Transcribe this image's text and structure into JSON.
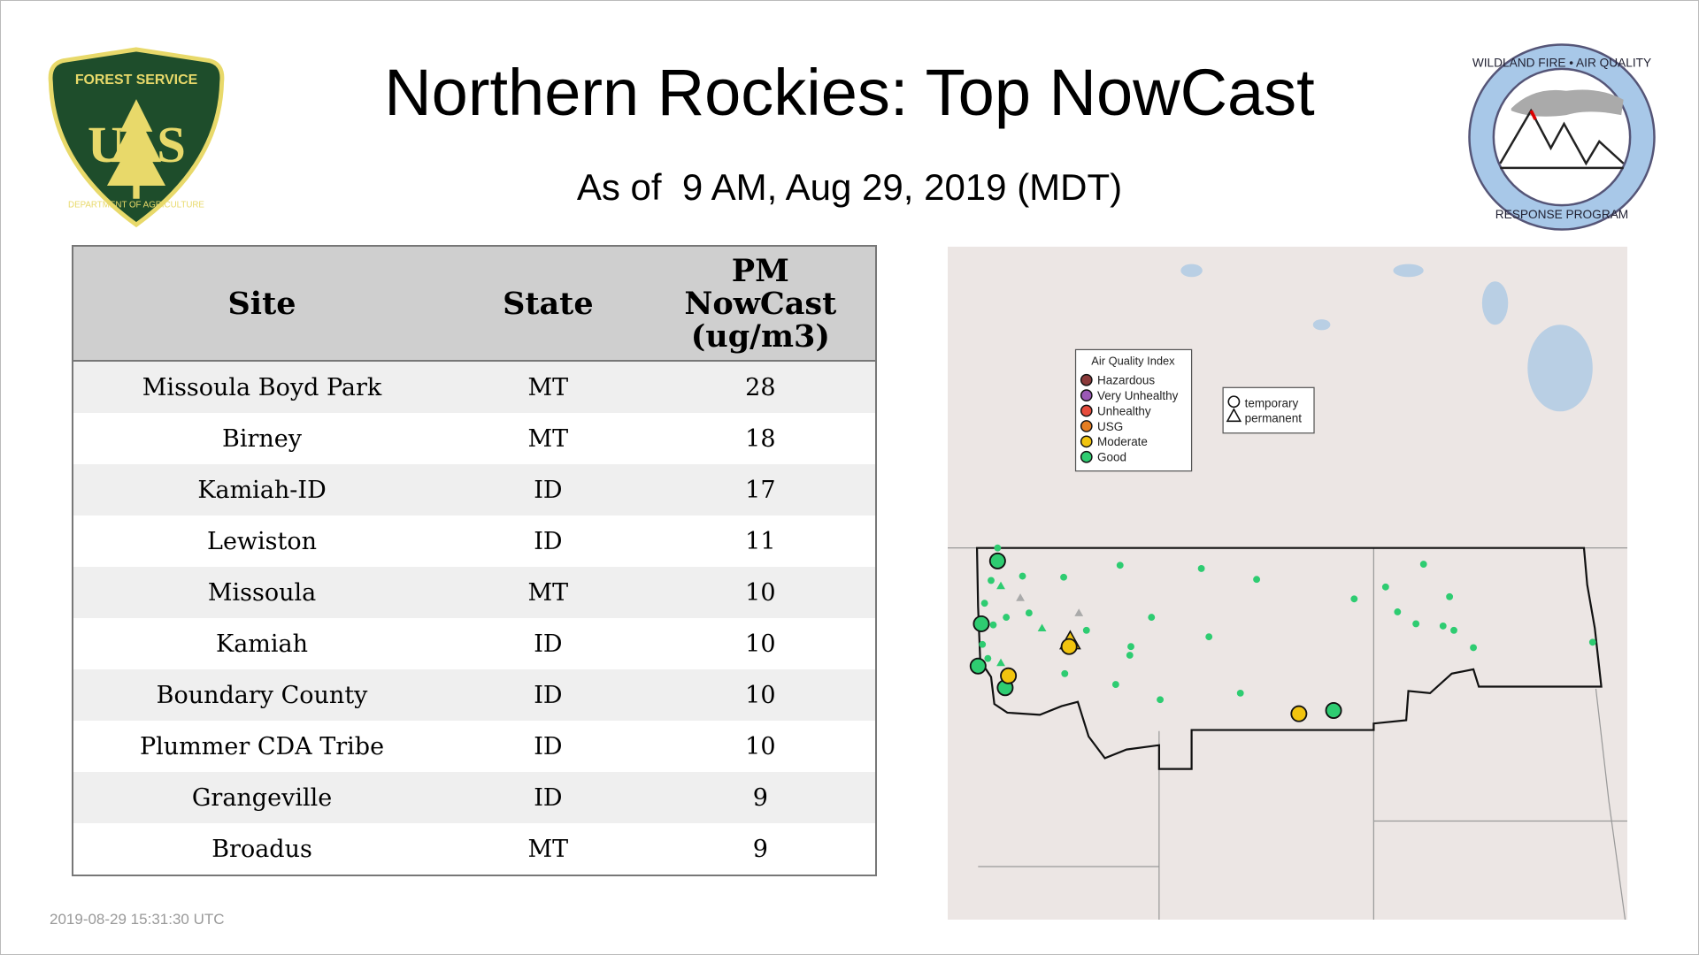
{
  "title": "Northern Rockies: Top NowCast",
  "subtitle": "As of  9 AM, Aug 29, 2019 (MDT)",
  "logos": {
    "left": {
      "text_top": "FOREST SERVICE",
      "text_mid": "US",
      "text_bottom": "DEPARTMENT OF AGRICULTURE"
    },
    "right": {
      "text_top": "WILDLAND FIRE • AIR QUALITY",
      "text_bottom": "RESPONSE PROGRAM"
    }
  },
  "table": {
    "headers": [
      "Site",
      "State",
      "PM NowCast (ug/m3)"
    ],
    "rows": [
      {
        "site": "Missoula Boyd Park",
        "state": "MT",
        "value": "28"
      },
      {
        "site": "Birney",
        "state": "MT",
        "value": "18"
      },
      {
        "site": "Kamiah-ID",
        "state": "ID",
        "value": "17"
      },
      {
        "site": "Lewiston",
        "state": "ID",
        "value": "11"
      },
      {
        "site": "Missoula",
        "state": "MT",
        "value": "10"
      },
      {
        "site": "Kamiah",
        "state": "ID",
        "value": "10"
      },
      {
        "site": "Boundary County",
        "state": "ID",
        "value": "10"
      },
      {
        "site": "Plummer CDA Tribe",
        "state": "ID",
        "value": "10"
      },
      {
        "site": "Grangeville",
        "state": "ID",
        "value": "9"
      },
      {
        "site": "Broadus",
        "state": "MT",
        "value": "9"
      }
    ]
  },
  "map": {
    "legend_title": "Air Quality Index",
    "legend": [
      {
        "label": "Hazardous",
        "color": "#8b3a3a"
      },
      {
        "label": "Very Unhealthy",
        "color": "#9b59b6"
      },
      {
        "label": "Unhealthy",
        "color": "#e74c3c"
      },
      {
        "label": "USG",
        "color": "#e67e22"
      },
      {
        "label": "Moderate",
        "color": "#f1c40f"
      },
      {
        "label": "Good",
        "color": "#2ecc71"
      }
    ],
    "shape_legend": [
      {
        "label": "temporary",
        "shape": "circle"
      },
      {
        "label": "permanent",
        "shape": "triangle"
      }
    ]
  },
  "footer": "2019-08-29 15:31:30 UTC"
}
